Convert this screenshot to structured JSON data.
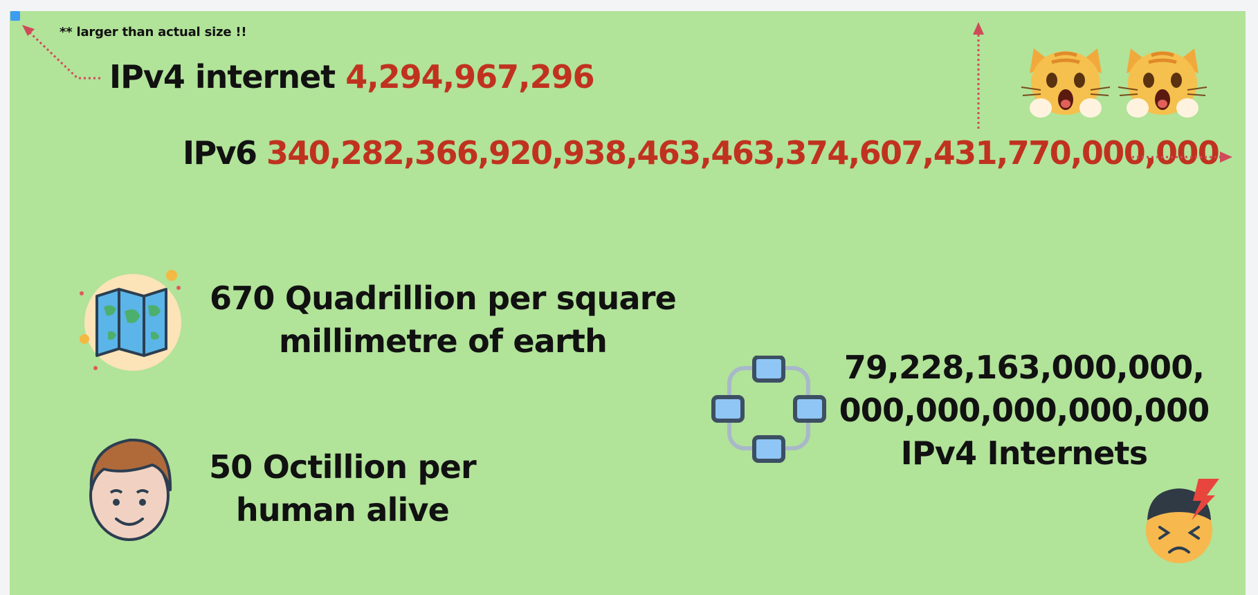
{
  "note": "** larger than actual size !!",
  "ipv4": {
    "label": "IPv4 internet",
    "value": "4,294,967,296"
  },
  "ipv6": {
    "label": "IPv6",
    "value": "340,282,366,920,938,463,463,374,607,431,770,000,000"
  },
  "facts": {
    "earth_line1": "670 Quadrillion per square",
    "earth_line2": "millimetre of earth",
    "human_line1": "50 Octillion per",
    "human_line2": "human alive",
    "internets_line1": "79,228,163,000,000,",
    "internets_line2": "000,000,000,000,000",
    "internets_line3": "IPv4 Internets"
  },
  "colors": {
    "background": "#b1e399",
    "accent_red": "#c0321f",
    "arrow": "#d04a5a",
    "selection_handle": "#3b9cf2"
  },
  "icons": [
    "cat-shocked-icon",
    "cat-shocked-icon",
    "world-map-icon",
    "man-face-icon",
    "network-diagram-icon",
    "stressed-person-icon"
  ]
}
